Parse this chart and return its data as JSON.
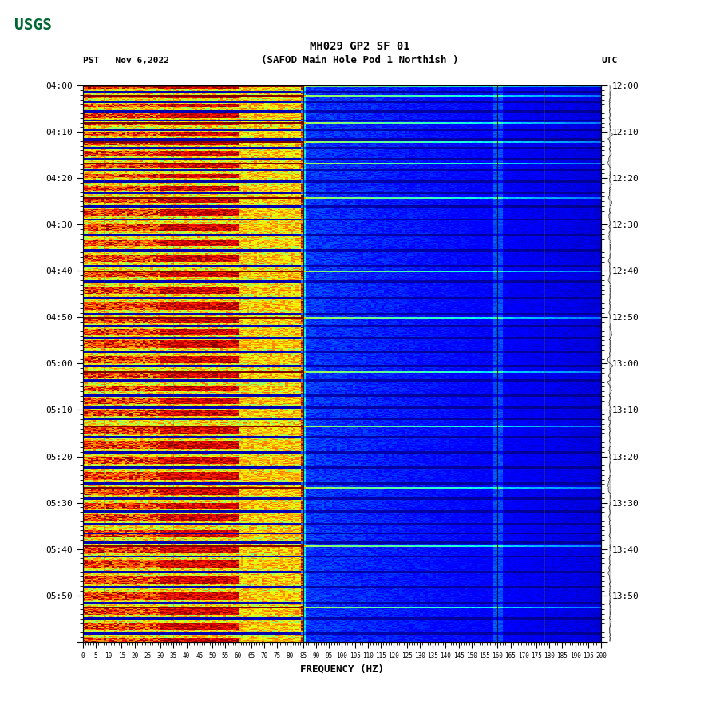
{
  "title_line1": "MH029 GP2 SF 01",
  "title_line2": "(SAFOD Main Hole Pod 1 Northish )",
  "left_label": "PST   Nov 6,2022",
  "right_label": "UTC",
  "xlabel": "FREQUENCY (HZ)",
  "left_time_labels": [
    "04:00",
    "04:10",
    "04:20",
    "04:30",
    "04:40",
    "04:50",
    "05:00",
    "05:10",
    "05:20",
    "05:30",
    "05:40",
    "05:50"
  ],
  "right_time_labels": [
    "12:00",
    "12:10",
    "12:20",
    "12:30",
    "12:40",
    "12:50",
    "13:00",
    "13:10",
    "13:20",
    "13:30",
    "13:40",
    "13:50"
  ],
  "freq_ticks": [
    0,
    5,
    10,
    15,
    20,
    25,
    30,
    35,
    40,
    45,
    50,
    55,
    60,
    65,
    70,
    75,
    80,
    85,
    90,
    95,
    100,
    105,
    110,
    115,
    120,
    125,
    130,
    135,
    140,
    145,
    150,
    155,
    160,
    165,
    170,
    175,
    180,
    185,
    190,
    195,
    200
  ],
  "freq_tick_labels": [
    "0",
    "5",
    "10",
    "15",
    "20",
    "25",
    "30",
    "35",
    "40",
    "45",
    "50",
    "55",
    "60",
    "65",
    "70",
    "75",
    "80",
    "85",
    "90",
    "95",
    "100",
    "105",
    "110",
    "115",
    "120",
    "125",
    "130",
    "135",
    "140",
    "145",
    "150",
    "155",
    "160",
    "165",
    "170",
    "175",
    "180",
    "185",
    "190",
    "195",
    "200"
  ],
  "n_time": 720,
  "n_freq": 200,
  "background_color": "#ffffff",
  "fig_width": 9.02,
  "fig_height": 8.93,
  "dpi": 100,
  "usgs_color": "#006633",
  "spectrogram_colormap": "jet",
  "vlines_dark": [
    85,
    160
  ],
  "vlines_thin": [
    8,
    35,
    178
  ]
}
